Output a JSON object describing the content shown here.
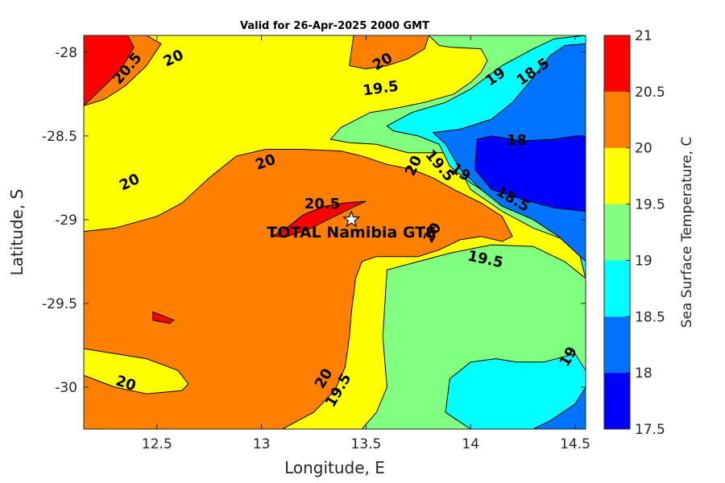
{
  "chart_data": {
    "type": "contour",
    "title": "Valid for 26-Apr-2025 2000 GMT",
    "xlabel": "Longitude, E",
    "ylabel": "Latitude, S",
    "xlim": [
      12.15,
      14.55
    ],
    "ylim": [
      -30.25,
      -27.9
    ],
    "x_ticks": [
      "12.5",
      "13",
      "13.5",
      "14",
      "14.5"
    ],
    "x_tick_values": [
      12.5,
      13.0,
      13.5,
      14.0,
      14.5
    ],
    "y_ticks": [
      "-28",
      "-28.5",
      "-29",
      "-29.5",
      "-30"
    ],
    "y_tick_values": [
      -28.0,
      -28.5,
      -29.0,
      -29.5,
      -30.0
    ],
    "grid": false,
    "colorbar": {
      "label": "Sea Surface Temperature, C",
      "range": [
        17.5,
        21
      ],
      "ticks": [
        "17.5",
        "18",
        "18.5",
        "19",
        "19.5",
        "20",
        "20.5",
        "21"
      ],
      "tick_values": [
        17.5,
        18,
        18.5,
        19,
        19.5,
        20,
        20.5,
        21
      ],
      "levels": [
        {
          "min": 17.5,
          "max": 18.0,
          "color": "#0000ff"
        },
        {
          "min": 18.0,
          "max": 18.5,
          "color": "#0073ff"
        },
        {
          "min": 18.5,
          "max": 19.0,
          "color": "#00ffff"
        },
        {
          "min": 19.0,
          "max": 19.5,
          "color": "#80ff80"
        },
        {
          "min": 19.5,
          "max": 20.0,
          "color": "#ffff00"
        },
        {
          "min": 20.0,
          "max": 20.5,
          "color": "#ff8000"
        },
        {
          "min": 20.5,
          "max": 21.0,
          "color": "#ff0000"
        }
      ]
    },
    "regions": [
      {
        "level": 19.5,
        "points": [
          [
            12.15,
            -28.32
          ],
          [
            12.15,
            -27.9
          ],
          [
            14.55,
            -27.9
          ],
          [
            14.55,
            -30.25
          ],
          [
            12.15,
            -30.25
          ]
        ]
      },
      {
        "level": 20.0,
        "points": [
          [
            12.15,
            -28.32
          ],
          [
            12.15,
            -27.9
          ],
          [
            12.45,
            -27.9
          ],
          [
            12.52,
            -27.95
          ],
          [
            12.45,
            -28.08
          ],
          [
            12.35,
            -28.2
          ],
          [
            12.25,
            -28.28
          ]
        ]
      },
      {
        "level": 20.5,
        "points": [
          [
            12.15,
            -28.32
          ],
          [
            12.15,
            -27.9
          ],
          [
            12.36,
            -27.9
          ],
          [
            12.39,
            -27.97
          ],
          [
            12.33,
            -28.1
          ],
          [
            12.25,
            -28.2
          ]
        ]
      },
      {
        "level": 20.0,
        "points": [
          [
            13.42,
            -28.08
          ],
          [
            13.44,
            -27.9
          ],
          [
            13.8,
            -27.9
          ],
          [
            13.78,
            -27.98
          ],
          [
            13.7,
            -28.04
          ],
          [
            13.6,
            -28.08
          ],
          [
            13.5,
            -28.1
          ]
        ]
      },
      {
        "level": 19.0,
        "points": [
          [
            13.8,
            -27.9
          ],
          [
            14.55,
            -27.9
          ],
          [
            14.55,
            -29.35
          ],
          [
            14.52,
            -29.2
          ],
          [
            14.45,
            -29.12
          ],
          [
            14.3,
            -29.05
          ],
          [
            14.15,
            -28.95
          ],
          [
            14.0,
            -28.82
          ],
          [
            13.95,
            -28.7
          ],
          [
            13.9,
            -28.6
          ],
          [
            13.82,
            -28.6
          ],
          [
            13.7,
            -28.6
          ],
          [
            13.55,
            -28.55
          ],
          [
            13.42,
            -28.54
          ],
          [
            13.33,
            -28.52
          ],
          [
            13.38,
            -28.45
          ],
          [
            13.52,
            -28.36
          ],
          [
            13.62,
            -28.34
          ],
          [
            13.78,
            -28.3
          ],
          [
            13.92,
            -28.25
          ],
          [
            14.0,
            -28.18
          ],
          [
            14.05,
            -28.12
          ],
          [
            14.08,
            -28.05
          ],
          [
            14.05,
            -27.98
          ],
          [
            13.9,
            -27.97
          ],
          [
            13.85,
            -27.96
          ]
        ]
      },
      {
        "level": 18.5,
        "points": [
          [
            14.55,
            -27.9
          ],
          [
            14.55,
            -29.35
          ],
          [
            14.52,
            -29.2
          ],
          [
            14.45,
            -29.1
          ],
          [
            14.3,
            -29.0
          ],
          [
            14.15,
            -28.9
          ],
          [
            14.0,
            -28.78
          ],
          [
            13.9,
            -28.68
          ],
          [
            13.85,
            -28.55
          ],
          [
            13.75,
            -28.5
          ],
          [
            13.63,
            -28.47
          ],
          [
            13.6,
            -28.44
          ],
          [
            13.72,
            -28.36
          ],
          [
            13.88,
            -28.3
          ],
          [
            14.0,
            -28.22
          ],
          [
            14.15,
            -28.08
          ],
          [
            14.3,
            -27.98
          ],
          [
            14.4,
            -27.92
          ]
        ]
      },
      {
        "level": 18.0,
        "points": [
          [
            14.55,
            -27.95
          ],
          [
            14.55,
            -29.25
          ],
          [
            14.42,
            -29.1
          ],
          [
            14.3,
            -29.0
          ],
          [
            14.15,
            -28.92
          ],
          [
            14.05,
            -28.82
          ],
          [
            13.95,
            -28.7
          ],
          [
            13.88,
            -28.55
          ],
          [
            13.82,
            -28.48
          ],
          [
            13.95,
            -28.46
          ],
          [
            14.1,
            -28.4
          ],
          [
            14.2,
            -28.3
          ],
          [
            14.28,
            -28.18
          ],
          [
            14.38,
            -28.02
          ],
          [
            14.45,
            -27.96
          ]
        ]
      },
      {
        "level": 17.5,
        "points": [
          [
            14.55,
            -28.5
          ],
          [
            14.55,
            -28.95
          ],
          [
            14.4,
            -28.93
          ],
          [
            14.25,
            -28.88
          ],
          [
            14.1,
            -28.82
          ],
          [
            14.02,
            -28.7
          ],
          [
            14.03,
            -28.52
          ],
          [
            14.1,
            -28.5
          ],
          [
            14.25,
            -28.53
          ],
          [
            14.4,
            -28.52
          ],
          [
            14.5,
            -28.5
          ]
        ]
      },
      {
        "level": 20.0,
        "points": [
          [
            12.15,
            -29.07
          ],
          [
            12.3,
            -29.05
          ],
          [
            12.5,
            -28.98
          ],
          [
            12.62,
            -28.9
          ],
          [
            12.75,
            -28.75
          ],
          [
            12.88,
            -28.62
          ],
          [
            13.02,
            -28.58
          ],
          [
            13.2,
            -28.58
          ],
          [
            13.38,
            -28.59
          ],
          [
            13.48,
            -28.62
          ],
          [
            13.6,
            -28.67
          ],
          [
            13.72,
            -28.7
          ],
          [
            13.82,
            -28.75
          ],
          [
            13.92,
            -28.82
          ],
          [
            14.05,
            -28.9
          ],
          [
            14.15,
            -28.98
          ],
          [
            14.2,
            -29.1
          ],
          [
            14.15,
            -29.13
          ],
          [
            14.05,
            -29.1
          ],
          [
            13.95,
            -29.12
          ],
          [
            13.85,
            -29.18
          ],
          [
            13.75,
            -29.22
          ],
          [
            13.65,
            -29.22
          ],
          [
            13.55,
            -29.22
          ],
          [
            13.48,
            -29.25
          ],
          [
            13.45,
            -29.35
          ],
          [
            13.43,
            -29.55
          ],
          [
            13.42,
            -29.7
          ],
          [
            13.4,
            -29.88
          ],
          [
            13.35,
            -30.02
          ],
          [
            13.25,
            -30.15
          ],
          [
            13.1,
            -30.25
          ],
          [
            12.15,
            -30.25
          ]
        ]
      },
      {
        "level": 19.5,
        "points": [
          [
            12.15,
            -29.77
          ],
          [
            12.3,
            -29.8
          ],
          [
            12.45,
            -29.83
          ],
          [
            12.6,
            -29.9
          ],
          [
            12.65,
            -29.98
          ],
          [
            12.62,
            -30.02
          ],
          [
            12.45,
            -30.04
          ],
          [
            12.3,
            -30.0
          ],
          [
            12.15,
            -29.93
          ]
        ]
      },
      {
        "level": 20.5,
        "points": [
          [
            13.05,
            -29.1
          ],
          [
            13.12,
            -29.05
          ],
          [
            13.2,
            -28.97
          ],
          [
            13.3,
            -28.92
          ],
          [
            13.4,
            -28.9
          ],
          [
            13.5,
            -28.89
          ],
          [
            13.43,
            -28.93
          ],
          [
            13.35,
            -28.98
          ],
          [
            13.22,
            -29.06
          ],
          [
            13.12,
            -29.1
          ]
        ]
      },
      {
        "level": 20.5,
        "points": [
          [
            12.48,
            -29.55
          ],
          [
            12.52,
            -29.57
          ],
          [
            12.58,
            -29.6
          ],
          [
            12.56,
            -29.62
          ],
          [
            12.48,
            -29.6
          ]
        ]
      },
      {
        "level": 19.0,
        "points": [
          [
            13.48,
            -30.25
          ],
          [
            13.55,
            -30.15
          ],
          [
            13.6,
            -30.0
          ],
          [
            13.58,
            -29.7
          ],
          [
            13.6,
            -29.3
          ],
          [
            13.75,
            -29.25
          ],
          [
            13.9,
            -29.2
          ],
          [
            14.1,
            -29.15
          ],
          [
            14.3,
            -29.16
          ],
          [
            14.45,
            -29.25
          ],
          [
            14.55,
            -29.35
          ],
          [
            14.55,
            -30.25
          ]
        ]
      },
      {
        "level": 18.5,
        "points": [
          [
            14.55,
            -29.9
          ],
          [
            14.55,
            -30.25
          ],
          [
            14.0,
            -30.25
          ],
          [
            13.88,
            -30.15
          ],
          [
            13.9,
            -29.95
          ],
          [
            14.0,
            -29.85
          ],
          [
            14.12,
            -29.83
          ],
          [
            14.22,
            -29.85
          ],
          [
            14.35,
            -29.85
          ],
          [
            14.5,
            -29.8
          ]
        ]
      },
      {
        "level": 18.0,
        "points": [
          [
            14.55,
            -30.0
          ],
          [
            14.55,
            -30.25
          ],
          [
            14.3,
            -30.25
          ],
          [
            14.38,
            -30.2
          ],
          [
            14.5,
            -30.1
          ]
        ]
      }
    ],
    "contour_labels": [
      {
        "text": "20.5",
        "x": 12.36,
        "y": -28.1,
        "angle": -50
      },
      {
        "text": "20",
        "x": 12.58,
        "y": -28.04,
        "angle": -25
      },
      {
        "text": "20",
        "x": 13.58,
        "y": -28.06,
        "angle": -30
      },
      {
        "text": "19.5",
        "x": 13.57,
        "y": -28.22,
        "angle": -8
      },
      {
        "text": "19",
        "x": 14.12,
        "y": -28.15,
        "angle": -35
      },
      {
        "text": "18.5",
        "x": 14.3,
        "y": -28.12,
        "angle": -35
      },
      {
        "text": "18",
        "x": 14.22,
        "y": -28.53,
        "angle": 0
      },
      {
        "text": "20",
        "x": 13.02,
        "y": -28.66,
        "angle": -20
      },
      {
        "text": "20",
        "x": 12.37,
        "y": -28.78,
        "angle": -25
      },
      {
        "text": "20",
        "x": 13.73,
        "y": -28.68,
        "angle": -65
      },
      {
        "text": "19.5",
        "x": 13.85,
        "y": -28.68,
        "angle": 50
      },
      {
        "text": "19",
        "x": 13.95,
        "y": -28.72,
        "angle": 35
      },
      {
        "text": "18.5",
        "x": 14.2,
        "y": -28.88,
        "angle": 30
      },
      {
        "text": "20.5",
        "x": 13.29,
        "y": -28.91,
        "angle": 0
      },
      {
        "text": "20",
        "x": 13.82,
        "y": -29.08,
        "angle": -60
      },
      {
        "text": "19.5",
        "x": 14.07,
        "y": -29.24,
        "angle": 12
      },
      {
        "text": "19",
        "x": 14.47,
        "y": -29.82,
        "angle": -60
      },
      {
        "text": "20",
        "x": 12.35,
        "y": -29.98,
        "angle": 18
      },
      {
        "text": "20",
        "x": 13.3,
        "y": -29.95,
        "angle": -60
      },
      {
        "text": "19.5",
        "x": 13.37,
        "y": -30.02,
        "angle": -60
      }
    ],
    "annotations": [
      {
        "text": "TOTAL Namibia GTS",
        "x": 13.43,
        "y": -29.0,
        "marker": "star"
      }
    ]
  }
}
